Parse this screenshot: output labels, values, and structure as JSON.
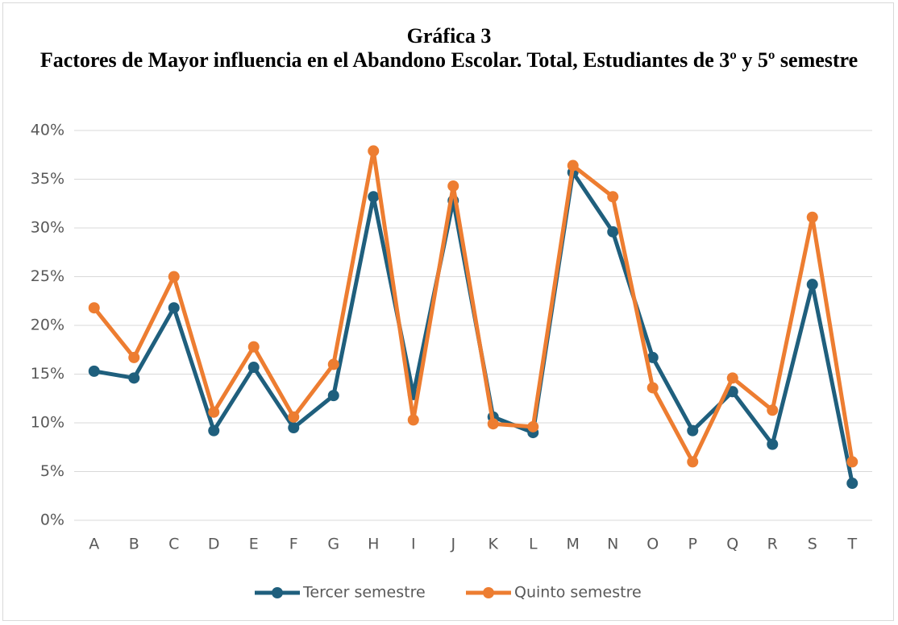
{
  "chart_data": {
    "type": "line",
    "title": "Gráfica 3",
    "subtitle": "Factores de Mayor influencia en el Abandono Escolar. Total, Estudiantes de 3º y 5º semestre",
    "categories": [
      "A",
      "B",
      "C",
      "D",
      "E",
      "F",
      "G",
      "H",
      "I",
      "J",
      "K",
      "L",
      "M",
      "N",
      "O",
      "P",
      "Q",
      "R",
      "S",
      "T"
    ],
    "series": [
      {
        "name": "Tercer semestre",
        "color": "#1f5f7d",
        "values": [
          15.3,
          14.6,
          21.8,
          9.2,
          15.7,
          9.5,
          12.8,
          33.2,
          12.9,
          32.8,
          10.6,
          9.0,
          35.7,
          29.6,
          16.7,
          9.2,
          13.2,
          7.8,
          24.2,
          3.8
        ]
      },
      {
        "name": "Quinto semestre",
        "color": "#ed7d31",
        "values": [
          21.8,
          16.7,
          25.0,
          11.1,
          17.8,
          10.6,
          16.0,
          37.9,
          10.3,
          34.3,
          9.9,
          9.6,
          36.4,
          33.2,
          13.6,
          6.0,
          14.6,
          11.3,
          31.1,
          6.0
        ]
      }
    ],
    "ylim": [
      0,
      40
    ],
    "yticks": [
      {
        "value": 0,
        "label": "0%"
      },
      {
        "value": 5,
        "label": "5%"
      },
      {
        "value": 10,
        "label": "10%"
      },
      {
        "value": 15,
        "label": "15%"
      },
      {
        "value": 20,
        "label": "20%"
      },
      {
        "value": 25,
        "label": "25%"
      },
      {
        "value": 30,
        "label": "30%"
      },
      {
        "value": 35,
        "label": "35%"
      },
      {
        "value": 40,
        "label": "40%"
      }
    ],
    "grid": true,
    "legend": "bottom"
  }
}
